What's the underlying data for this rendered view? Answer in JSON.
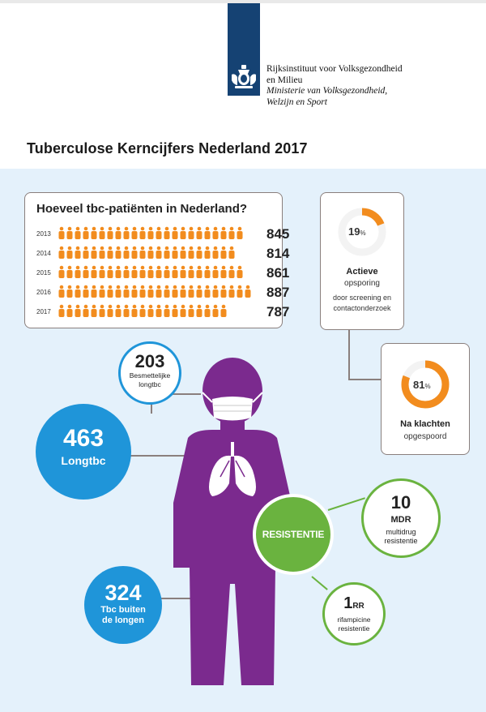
{
  "header": {
    "org_line1": "Rijksinstituut voor Volksgezondheid",
    "org_line2": "en Milieu",
    "org_line3": "Ministerie van Volksgezondheid,",
    "org_line4": "Welzijn en Sport",
    "page_title": "Tuberculose Kerncijfers Nederland 2017"
  },
  "chart_data": {
    "type": "bar",
    "title": "Hoeveel tbc-patiënten in Nederland?",
    "categories": [
      "2013",
      "2014",
      "2015",
      "2016",
      "2017"
    ],
    "values": [
      845,
      814,
      861,
      887,
      787
    ],
    "xlim": [
      0,
      900
    ],
    "color": "#f28c1e",
    "mark": "person-icons"
  },
  "actieve": {
    "percent": 19,
    "pct_number": "19",
    "pct_sign": "%",
    "label_bold": "Actieve",
    "label_sub": "opsporing",
    "detail_line1": "door screening en",
    "detail_line2": "contactonderzoek",
    "color": "#f28c1e"
  },
  "klachten": {
    "percent": 81,
    "pct_number": "81",
    "pct_sign": "%",
    "label_bold": "Na klachten",
    "label_sub": "opgespoord",
    "color": "#f28c1e"
  },
  "stats": {
    "besmettelijk_value": "203",
    "besmettelijk_line1": "Besmettelijke",
    "besmettelijk_line2": "longtbc",
    "longtbc_value": "463",
    "longtbc_label": "Longtbc",
    "buiten_value": "324",
    "buiten_line1": "Tbc buiten",
    "buiten_line2": "de longen",
    "resistentie_label": "RESISTENTIE",
    "mdr_value": "10",
    "mdr_unit": "MDR",
    "mdr_line1": "multidrug",
    "mdr_line2": "resistentie",
    "rr_value": "1",
    "rr_unit": "RR",
    "rr_line1": "rifampicine",
    "rr_line2": "resistentie"
  },
  "colors": {
    "blue": "#1f95d9",
    "green": "#6ab33f",
    "purple": "#7b2a8e",
    "orange": "#f28c1e",
    "panel": "#e4f1fb",
    "logo_blue": "#154273"
  }
}
